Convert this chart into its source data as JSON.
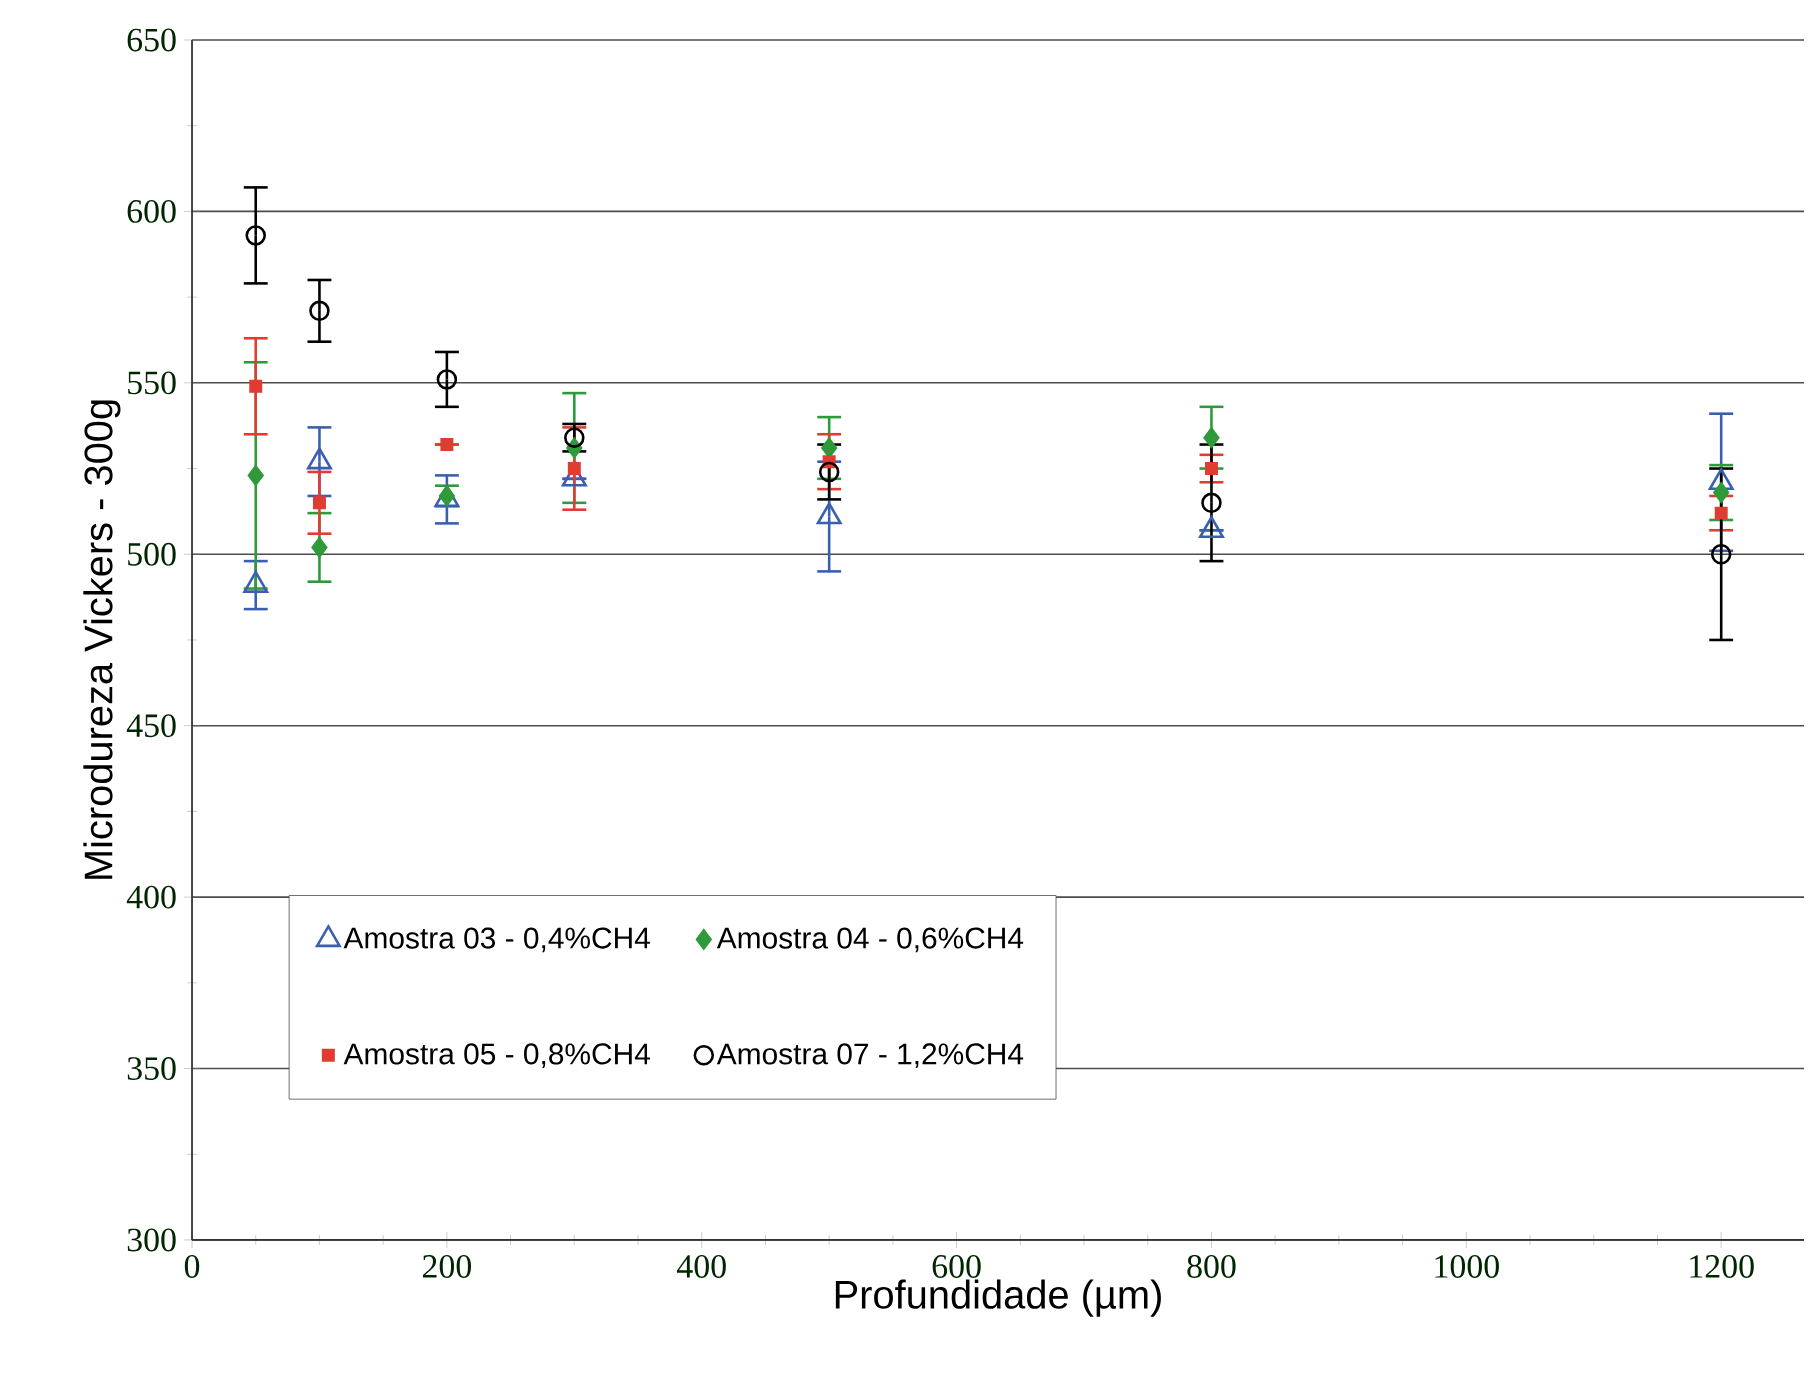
{
  "chart_data": {
    "type": "scatter",
    "xlabel": "Profundidade (µm)",
    "ylabel": "Microdureza Vickers - 300g",
    "x": [
      50,
      100,
      200,
      300,
      500,
      800,
      1200
    ],
    "xlim": [
      0,
      1265
    ],
    "xticks": [
      0,
      200,
      400,
      600,
      800,
      1000,
      1200
    ],
    "ylim": [
      300,
      650
    ],
    "yticks": [
      300,
      350,
      400,
      450,
      500,
      550,
      600,
      650
    ],
    "grid": "y",
    "legend": "bottom left",
    "series": [
      {
        "name": "Amostra 03 - 0,4%CH4",
        "color": "#3a5fb0",
        "marker": "triangle",
        "values": [
          491,
          527,
          516,
          522,
          511,
          507,
          521
        ],
        "errors": [
          7,
          10,
          7,
          null,
          16,
          null,
          20
        ]
      },
      {
        "name": "Amostra 04 - 0,6%CH4",
        "color": "#2e9a3a",
        "marker": "diamond",
        "values": [
          523,
          502,
          517,
          531,
          531,
          534,
          518
        ],
        "errors": [
          33,
          10,
          3,
          16,
          9,
          9,
          8
        ]
      },
      {
        "name": "Amostra 05 - 0,8%CH4",
        "color": "#e03c31",
        "marker": "square",
        "values": [
          549,
          515,
          532,
          525,
          527,
          525,
          512
        ],
        "errors": [
          14,
          9,
          null,
          12,
          8,
          4,
          5
        ]
      },
      {
        "name": "Amostra 07 - 1,2%CH4",
        "color": "#000000",
        "marker": "circle",
        "values": [
          593,
          571,
          551,
          534,
          524,
          515,
          500
        ],
        "errors": [
          14,
          9,
          8,
          4,
          8,
          17,
          25
        ]
      }
    ]
  }
}
